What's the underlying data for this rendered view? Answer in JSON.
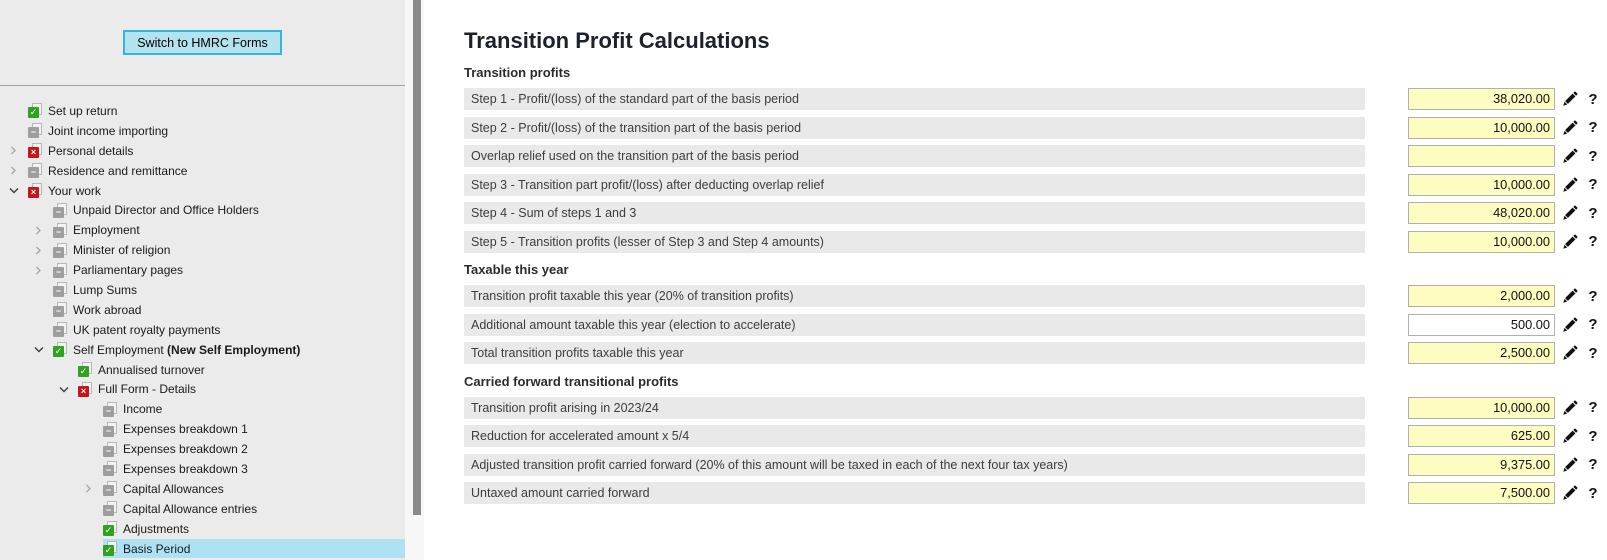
{
  "colors": {
    "accent_cyan": "#35b5d8",
    "button_fill": "#b4e3f0",
    "selected_item": "#aee2f2",
    "field_yellow": "#fdfdc2",
    "row_gray": "#e9e9e9",
    "status_green": "#31a122",
    "status_red": "#c4161c",
    "status_gray": "#9e9e9e"
  },
  "icons": {
    "edit": "pencil-icon",
    "help": "question-mark-icon",
    "collapsed": "chevron-right-icon",
    "expanded": "chevron-down-icon",
    "status_glyphs": {
      "check": "✓",
      "minus": "−",
      "cross": "×"
    }
  },
  "sidebar": {
    "switch_button_label": "Switch to HMRC Forms",
    "tree": [
      {
        "label": "Set up return",
        "level": 0,
        "status": "check",
        "chevron": "none"
      },
      {
        "label": "Joint income importing",
        "level": 0,
        "status": "minus",
        "chevron": "none"
      },
      {
        "label": "Personal details",
        "level": 0,
        "status": "cross",
        "chevron": "collapsed"
      },
      {
        "label": "Residence and remittance",
        "level": 0,
        "status": "minus",
        "chevron": "collapsed"
      },
      {
        "label": "Your work",
        "level": 0,
        "status": "cross",
        "chevron": "expanded"
      },
      {
        "label": "Unpaid Director and Office Holders",
        "level": 1,
        "status": "minus",
        "chevron": "none"
      },
      {
        "label": "Employment",
        "level": 1,
        "status": "minus",
        "chevron": "collapsed"
      },
      {
        "label": "Minister of religion",
        "level": 1,
        "status": "minus",
        "chevron": "collapsed"
      },
      {
        "label": "Parliamentary pages",
        "level": 1,
        "status": "minus",
        "chevron": "collapsed"
      },
      {
        "label": "Lump Sums",
        "level": 1,
        "status": "minus",
        "chevron": "none"
      },
      {
        "label": "Work abroad",
        "level": 1,
        "status": "minus",
        "chevron": "none"
      },
      {
        "label": "UK patent royalty payments",
        "level": 1,
        "status": "minus",
        "chevron": "none"
      },
      {
        "label": "Self Employment ",
        "label_bold": "(New Self Employment)",
        "level": 1,
        "status": "check",
        "chevron": "expanded"
      },
      {
        "label": "Annualised turnover",
        "level": 2,
        "status": "check",
        "chevron": "none"
      },
      {
        "label": "Full Form - Details",
        "level": 2,
        "status": "cross",
        "chevron": "expanded"
      },
      {
        "label": "Income",
        "level": 3,
        "status": "minus",
        "chevron": "none"
      },
      {
        "label": "Expenses breakdown 1",
        "level": 3,
        "status": "minus",
        "chevron": "none"
      },
      {
        "label": "Expenses breakdown 2",
        "level": 3,
        "status": "minus",
        "chevron": "none"
      },
      {
        "label": "Expenses breakdown 3",
        "level": 3,
        "status": "minus",
        "chevron": "none"
      },
      {
        "label": "Capital Allowances",
        "level": 3,
        "status": "minus",
        "chevron": "collapsed"
      },
      {
        "label": "Capital Allowance entries",
        "level": 3,
        "status": "minus",
        "chevron": "none"
      },
      {
        "label": "Adjustments",
        "level": 3,
        "status": "check",
        "chevron": "none"
      },
      {
        "label": "Basis Period",
        "level": 3,
        "status": "check",
        "chevron": "none",
        "selected": true
      }
    ]
  },
  "main": {
    "title": "Transition Profit Calculations",
    "sections": [
      {
        "heading": "Transition profits",
        "rows": [
          {
            "label": "Step 1 - Profit/(loss) of the standard part of the basis period",
            "value": "38,020.00",
            "editable": false
          },
          {
            "label": "Step 2 - Profit/(loss) of the transition part of the basis period",
            "value": "10,000.00",
            "editable": false
          },
          {
            "label": "Overlap relief used on the transition part of the basis period",
            "value": "",
            "editable": false
          },
          {
            "label": "Step 3 - Transition part profit/(loss) after deducting overlap relief",
            "value": "10,000.00",
            "editable": false
          },
          {
            "label": "Step 4 - Sum of steps 1 and 3",
            "value": "48,020.00",
            "editable": false
          },
          {
            "label": "Step 5 - Transition profits (lesser of Step 3 and Step 4 amounts)",
            "value": "10,000.00",
            "editable": false
          }
        ]
      },
      {
        "heading": "Taxable this year",
        "rows": [
          {
            "label": "Transition profit taxable this year (20% of transition profits)",
            "value": "2,000.00",
            "editable": false
          },
          {
            "label": "Additional amount taxable this year (election to accelerate)",
            "value": "500.00",
            "editable": true
          },
          {
            "label": "Total transition profits taxable this year",
            "value": "2,500.00",
            "editable": false
          }
        ]
      },
      {
        "heading": "Carried forward transitional profits",
        "rows": [
          {
            "label": "Transition profit arising in 2023/24",
            "value": "10,000.00",
            "editable": false
          },
          {
            "label": "Reduction for accelerated amount x 5/4",
            "value": "625.00",
            "editable": false
          },
          {
            "label": "Adjusted transition profit carried forward (20% of this amount will be taxed in each of the next four tax years)",
            "value": "9,375.00",
            "editable": false
          },
          {
            "label": "Untaxed amount carried forward",
            "value": "7,500.00",
            "editable": false
          }
        ]
      }
    ]
  }
}
